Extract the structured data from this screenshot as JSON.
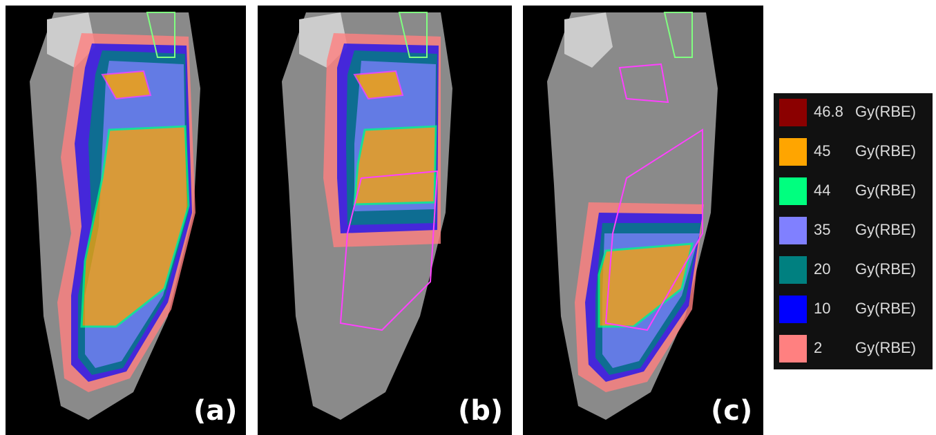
{
  "panels": [
    {
      "label": "(a)"
    },
    {
      "label": "(b)"
    },
    {
      "label": "(c)"
    }
  ],
  "legend": [
    {
      "dose": 46.8,
      "unit": "Gy(RBE)",
      "color": "#8b0000"
    },
    {
      "dose": 45,
      "unit": "Gy(RBE)",
      "color": "#ffa500"
    },
    {
      "dose": 44,
      "unit": "Gy(RBE)",
      "color": "#00ff7f"
    },
    {
      "dose": 35,
      "unit": "Gy(RBE)",
      "color": "#8080ff"
    },
    {
      "dose": 20,
      "unit": "Gy(RBE)",
      "color": "#008080"
    },
    {
      "dose": 10,
      "unit": "Gy(RBE)",
      "color": "#0000ff"
    },
    {
      "dose": 2,
      "unit": "Gy(RBE)",
      "color": "#ff8080"
    }
  ]
}
